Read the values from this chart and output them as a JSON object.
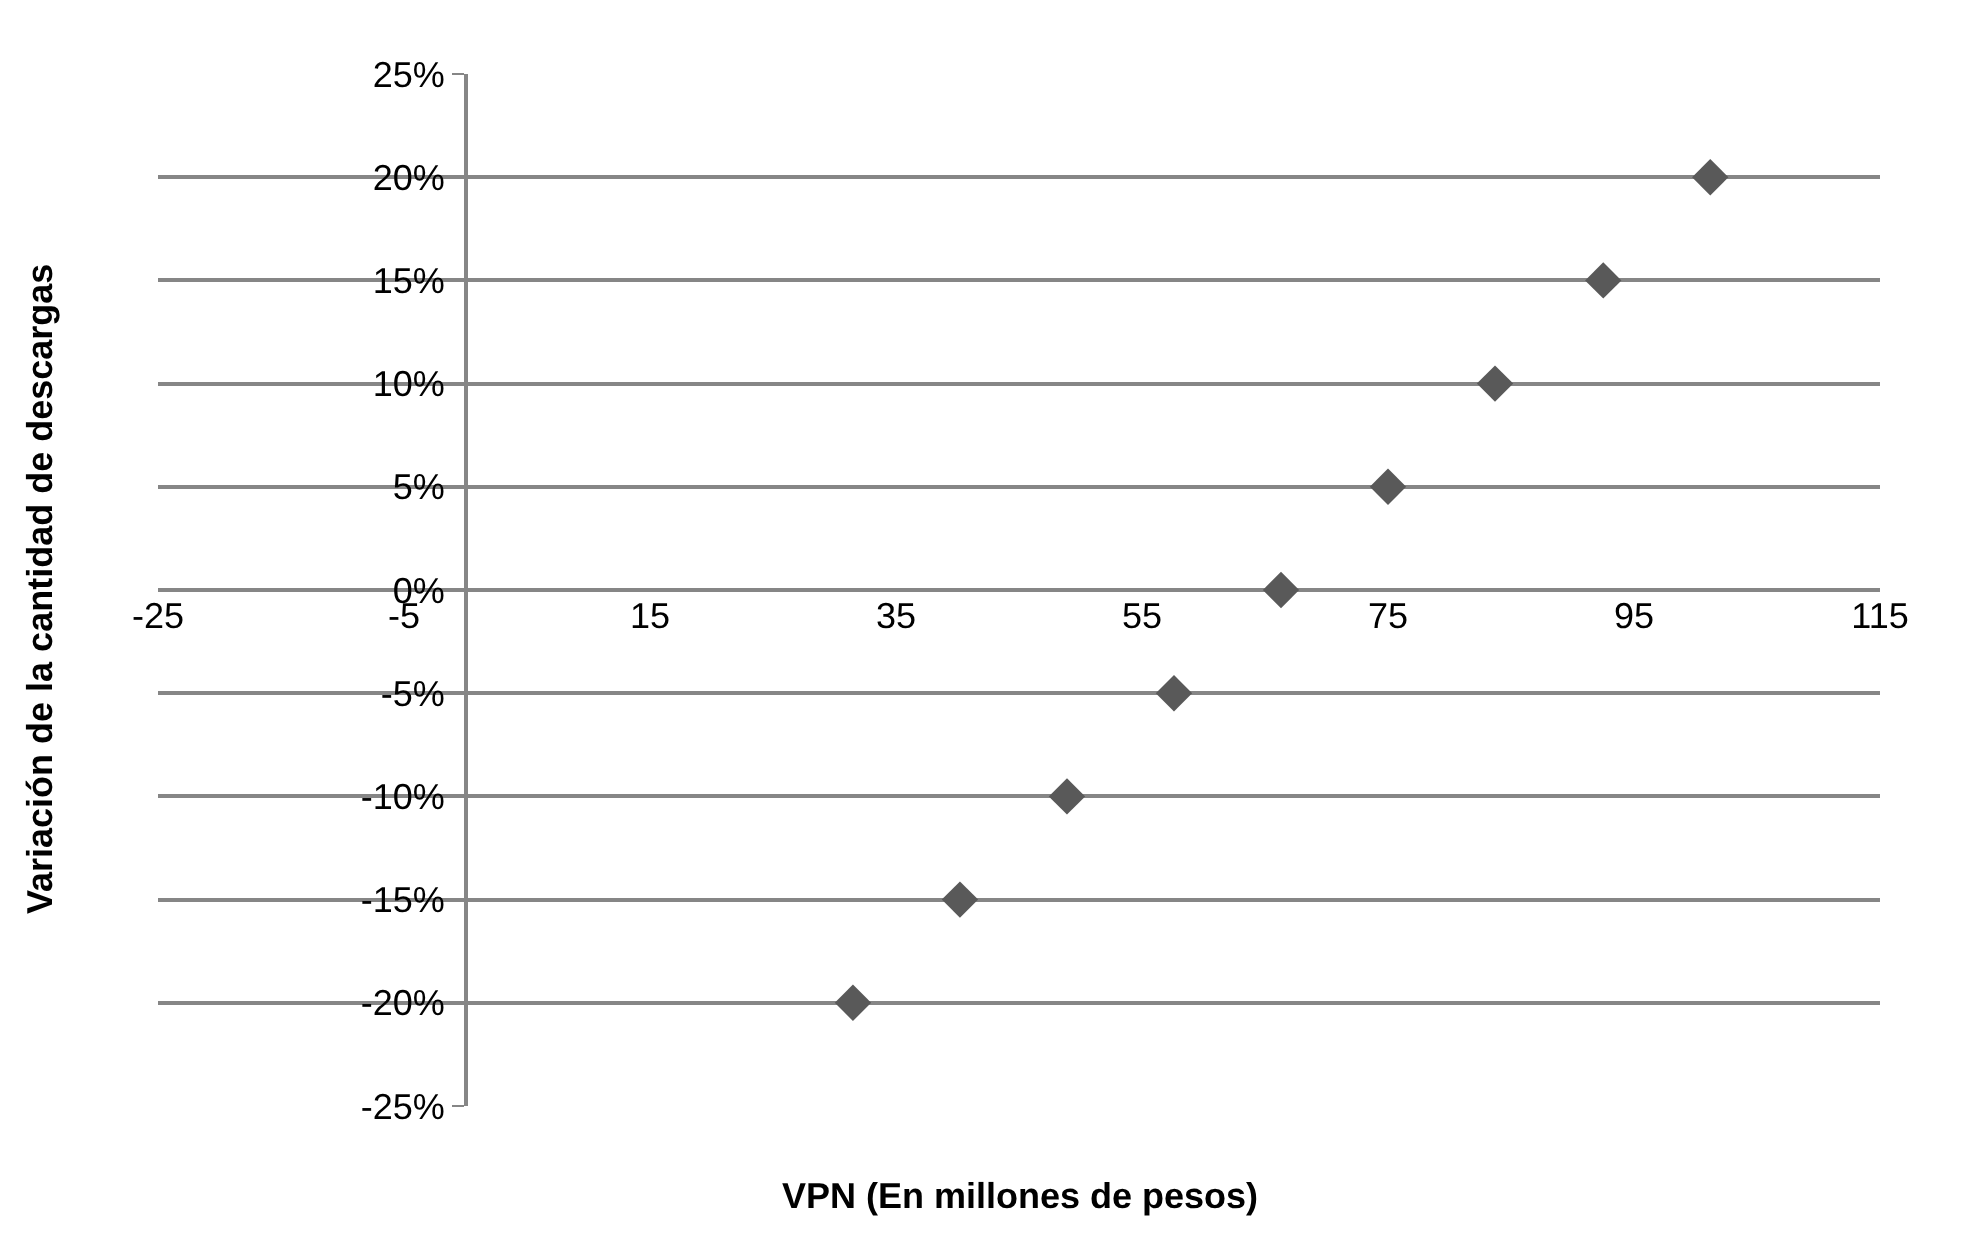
{
  "chart_data": {
    "type": "scatter",
    "xlabel": "VPN (En millones de pesos)",
    "ylabel": "Variación de la cantidad de descargas",
    "x": [
      31.5,
      40.2,
      48.9,
      57.6,
      66.3,
      75.0,
      83.7,
      92.5,
      101.2
    ],
    "series": [
      {
        "color": "#595959",
        "values": [
          -20,
          -15,
          -10,
          -5,
          0,
          5,
          10,
          15,
          20
        ]
      }
    ],
    "xlim": [
      -25,
      115
    ],
    "xticks": [
      -25,
      -5,
      15,
      35,
      55,
      75,
      95,
      115
    ],
    "ylim": [
      -25,
      25
    ],
    "yticks": [
      {
        "value": -25,
        "label": "-25%"
      },
      {
        "value": -20,
        "label": "-20%"
      },
      {
        "value": -15,
        "label": "-15%"
      },
      {
        "value": -10,
        "label": "-10%"
      },
      {
        "value": -5,
        "label": "-5%"
      },
      {
        "value": 0,
        "label": "0%"
      },
      {
        "value": 5,
        "label": "5%"
      },
      {
        "value": 10,
        "label": "10%"
      },
      {
        "value": 15,
        "label": "15%"
      },
      {
        "value": 20,
        "label": "20%"
      },
      {
        "value": 25,
        "label": "25%"
      }
    ],
    "grid": "y",
    "marker": "diamond"
  }
}
